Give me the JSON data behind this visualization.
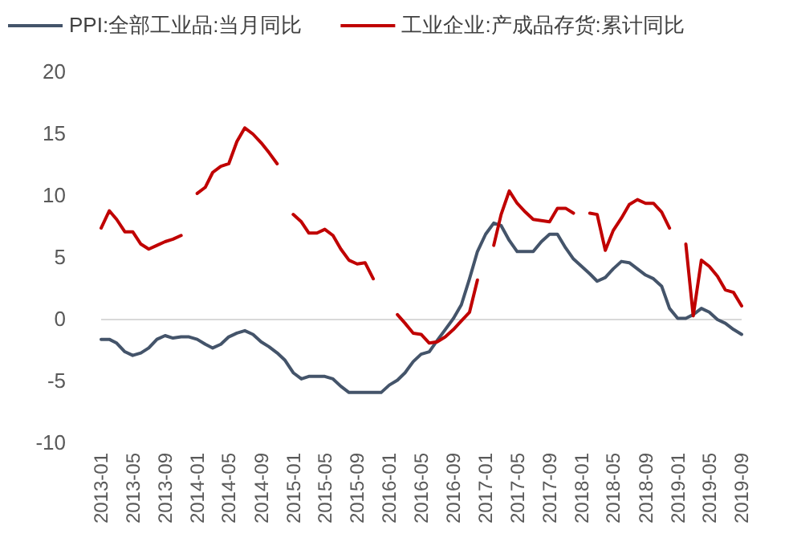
{
  "chart_data": {
    "type": "line",
    "x": [
      "2013-01",
      "2013-02",
      "2013-03",
      "2013-04",
      "2013-05",
      "2013-06",
      "2013-07",
      "2013-08",
      "2013-09",
      "2013-10",
      "2013-11",
      "2013-12",
      "2014-01",
      "2014-02",
      "2014-03",
      "2014-04",
      "2014-05",
      "2014-06",
      "2014-07",
      "2014-08",
      "2014-09",
      "2014-10",
      "2014-11",
      "2014-12",
      "2015-01",
      "2015-02",
      "2015-03",
      "2015-04",
      "2015-05",
      "2015-06",
      "2015-07",
      "2015-08",
      "2015-09",
      "2015-10",
      "2015-11",
      "2015-12",
      "2016-01",
      "2016-02",
      "2016-03",
      "2016-04",
      "2016-05",
      "2016-06",
      "2016-07",
      "2016-08",
      "2016-09",
      "2016-10",
      "2016-11",
      "2016-12",
      "2017-01",
      "2017-02",
      "2017-03",
      "2017-04",
      "2017-05",
      "2017-06",
      "2017-07",
      "2017-08",
      "2017-09",
      "2017-10",
      "2017-11",
      "2017-12",
      "2018-01",
      "2018-02",
      "2018-03",
      "2018-04",
      "2018-05",
      "2018-06",
      "2018-07",
      "2018-08",
      "2018-09",
      "2018-10",
      "2018-11",
      "2018-12",
      "2019-01",
      "2019-02",
      "2019-03",
      "2019-04",
      "2019-05",
      "2019-06",
      "2019-07",
      "2019-08",
      "2019-09"
    ],
    "series": [
      {
        "name": "PPI:全部工业品:当月同比",
        "color": "#44546a",
        "values": [
          -1.6,
          -1.6,
          -1.9,
          -2.6,
          -2.9,
          -2.7,
          -2.3,
          -1.6,
          -1.3,
          -1.5,
          -1.4,
          -1.4,
          -1.6,
          -2.0,
          -2.3,
          -2.0,
          -1.4,
          -1.1,
          -0.9,
          -1.2,
          -1.8,
          -2.2,
          -2.7,
          -3.3,
          -4.3,
          -4.8,
          -4.6,
          -4.6,
          -4.6,
          -4.8,
          -5.4,
          -5.9,
          -5.9,
          -5.9,
          -5.9,
          -5.9,
          -5.3,
          -4.9,
          -4.3,
          -3.4,
          -2.8,
          -2.6,
          -1.7,
          -0.8,
          0.1,
          1.2,
          3.3,
          5.5,
          6.9,
          7.8,
          7.6,
          6.4,
          5.5,
          5.5,
          5.5,
          6.3,
          6.9,
          6.9,
          5.8,
          4.9,
          4.3,
          3.7,
          3.1,
          3.4,
          4.1,
          4.7,
          4.6,
          4.1,
          3.6,
          3.3,
          2.7,
          0.9,
          0.1,
          0.1,
          0.4,
          0.9,
          0.6,
          0.0,
          -0.3,
          -0.8,
          -1.2
        ]
      },
      {
        "name": "工业企业:产成品存货:累计同比",
        "color": "#c00000",
        "values": [
          7.4,
          8.8,
          8.1,
          7.1,
          7.1,
          6.1,
          5.7,
          6.0,
          6.3,
          6.5,
          6.8,
          null,
          10.2,
          10.7,
          11.9,
          12.4,
          12.6,
          14.4,
          15.5,
          15.0,
          14.3,
          13.5,
          12.6,
          null,
          8.5,
          7.9,
          7.0,
          7.0,
          7.3,
          6.8,
          5.7,
          4.8,
          4.5,
          4.6,
          3.3,
          null,
          null,
          0.4,
          -0.3,
          -1.1,
          -1.2,
          -1.9,
          -1.8,
          -1.4,
          -0.8,
          -0.1,
          0.6,
          3.2,
          null,
          6.0,
          8.5,
          10.4,
          9.4,
          8.7,
          8.1,
          8.0,
          7.9,
          9.0,
          9.0,
          8.6,
          null,
          8.6,
          8.5,
          5.6,
          7.2,
          8.2,
          9.3,
          9.7,
          9.4,
          9.4,
          8.7,
          7.4,
          null,
          6.1,
          0.3,
          4.8,
          4.3,
          3.5,
          2.4,
          2.2,
          1.1
        ]
      }
    ],
    "xlim": [
      "2013-01",
      "2019-09"
    ],
    "xticks": [
      "2013-01",
      "2013-05",
      "2013-09",
      "2014-01",
      "2014-05",
      "2014-09",
      "2015-01",
      "2015-05",
      "2015-09",
      "2016-01",
      "2016-05",
      "2016-09",
      "2017-01",
      "2017-05",
      "2017-09",
      "2018-01",
      "2018-05",
      "2018-09",
      "2019-01",
      "2019-05",
      "2019-09"
    ],
    "ylim": [
      -10,
      20
    ],
    "yticks": [
      -10,
      -5,
      0,
      5,
      10,
      15,
      20
    ],
    "legend": "top"
  }
}
